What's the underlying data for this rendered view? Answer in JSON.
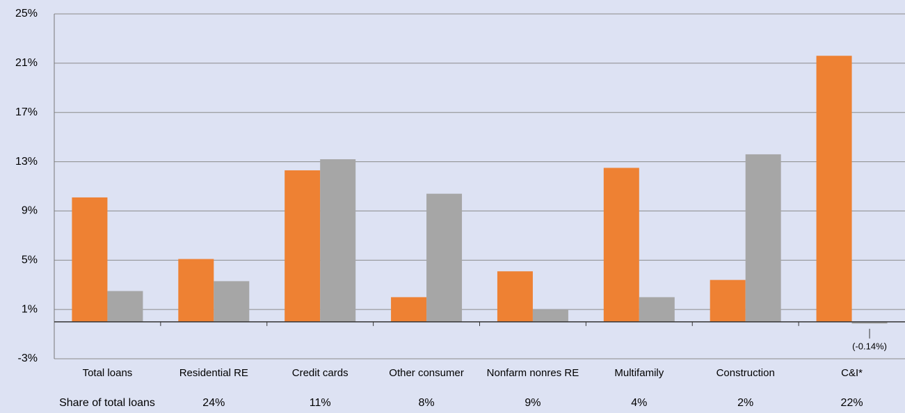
{
  "chart_data": {
    "type": "bar",
    "categories": [
      "Total loans",
      "Residential RE",
      "Credit cards",
      "Other consumer",
      "Nonfarm nonres RE",
      "Multifamily",
      "Construction",
      "C&I*"
    ],
    "series": [
      {
        "color": "#ee8133",
        "values": [
          10.1,
          5.1,
          12.3,
          2.0,
          4.1,
          12.5,
          3.4,
          21.6
        ]
      },
      {
        "color": "#a6a6a6",
        "values": [
          2.5,
          3.3,
          13.2,
          10.4,
          1.0,
          2.0,
          13.6,
          -0.14
        ],
        "value_labels": [
          null,
          null,
          null,
          null,
          null,
          null,
          null,
          "(-0.14%)"
        ]
      }
    ],
    "ylim": [
      -3,
      25
    ],
    "yticks": [
      {
        "value": -3,
        "label": "-3%"
      },
      {
        "value": 1,
        "label": "1%"
      },
      {
        "value": 5,
        "label": "5%"
      },
      {
        "value": 9,
        "label": "9%"
      },
      {
        "value": 13,
        "label": "13%"
      },
      {
        "value": 17,
        "label": "17%"
      },
      {
        "value": 21,
        "label": "21%"
      },
      {
        "value": 25,
        "label": "25%"
      }
    ],
    "grid": true,
    "share": {
      "label": "Share of total loans",
      "values": [
        24,
        11,
        8,
        9,
        4,
        2,
        22
      ],
      "value_labels": [
        "24%",
        "11%",
        "8%",
        "9%",
        "4%",
        "2%",
        "22%"
      ]
    }
  }
}
